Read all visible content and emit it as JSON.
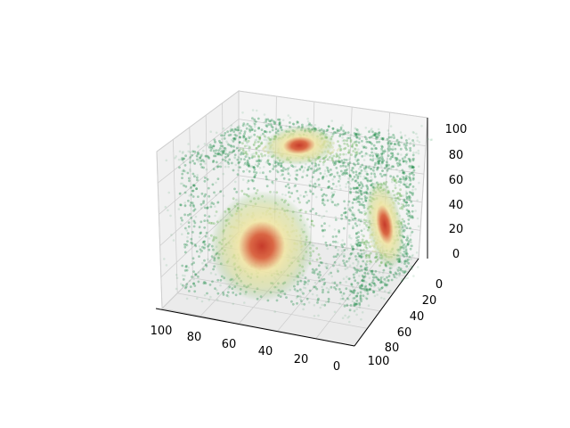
{
  "chart_data": {
    "type": "scatter",
    "projection": "3d",
    "title": "",
    "xlabel": "",
    "ylabel": "",
    "zlabel": "",
    "xlim": [
      0,
      100
    ],
    "ylim": [
      0,
      100
    ],
    "zlim": [
      0,
      100
    ],
    "x_ticks": [
      "0",
      "20",
      "40",
      "60",
      "80",
      "100"
    ],
    "y_ticks": [
      "0",
      "20",
      "40",
      "60",
      "80",
      "100"
    ],
    "z_ticks": [
      "0",
      "20",
      "40",
      "60",
      "80",
      "100"
    ],
    "grid": true,
    "colormap": [
      "#1a8a45",
      "#5fae4f",
      "#cfd88c",
      "#f1e6a6",
      "#c63a2a"
    ],
    "description_of_density": "cube of points 0-100 on each axis, dense hot spots at the centers of the visible faces",
    "hot_spots": [
      {
        "face": "top",
        "x": 50,
        "y": 50,
        "z": 100
      },
      {
        "face": "front",
        "x": 50,
        "y": 0,
        "z": 50
      },
      {
        "face": "side",
        "x": 0,
        "y": 50,
        "z": 50
      }
    ]
  }
}
